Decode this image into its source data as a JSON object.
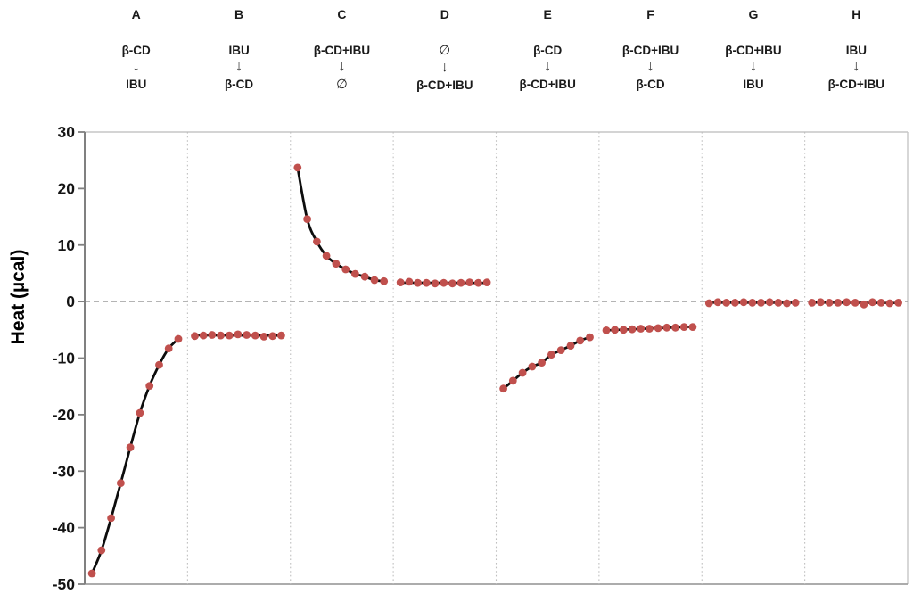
{
  "arrow_glyph": "↓",
  "colors": {
    "marker": "#C0504D",
    "fit_line": "#0d0d0d",
    "separator_grid": "#bfbfbf",
    "zero_line": "#9c9c9c",
    "axis_spine": "#808080",
    "plot_border": "#c6c6c6",
    "bottom_border": "#a0a0a0",
    "text": "#1a1a1a"
  },
  "chart_data": {
    "type": "scatter",
    "title": "",
    "xlabel": "",
    "ylabel": "Heat (µcal)",
    "ylim": [
      -50,
      30
    ],
    "yticks": [
      30,
      20,
      10,
      0,
      -10,
      -20,
      -30,
      -40,
      -50
    ],
    "zero_reference_line": 0,
    "grid": "vertical-panel-separators-only",
    "legend": "none",
    "panels": [
      {
        "label": "A",
        "top": "β-CD",
        "bottom": "IBU",
        "fit": "curve",
        "values": [
          -48.1,
          -44.0,
          -38.3,
          -32.1,
          -25.8,
          -19.7,
          -14.9,
          -11.2,
          -8.3,
          -6.6
        ]
      },
      {
        "label": "B",
        "top": "IBU",
        "bottom": "β-CD",
        "fit": "linear",
        "values": [
          -6.1,
          -6.0,
          -5.9,
          -6.0,
          -6.0,
          -5.8,
          -5.9,
          -6.0,
          -6.2,
          -6.1,
          -6.0
        ]
      },
      {
        "label": "C",
        "top": "β-CD+IBU",
        "bottom": "∅",
        "fit": "curve",
        "values": [
          23.7,
          14.6,
          10.6,
          8.1,
          6.7,
          5.7,
          4.9,
          4.4,
          3.8,
          3.6
        ]
      },
      {
        "label": "D",
        "top": "∅",
        "bottom": "β-CD+IBU",
        "fit": "linear",
        "values": [
          3.4,
          3.5,
          3.3,
          3.3,
          3.2,
          3.3,
          3.2,
          3.3,
          3.4,
          3.3,
          3.4
        ]
      },
      {
        "label": "E",
        "top": "β-CD",
        "bottom": "β-CD+IBU",
        "fit": "curve",
        "values": [
          -15.4,
          -14.0,
          -12.6,
          -11.5,
          -10.8,
          -9.4,
          -8.6,
          -7.8,
          -6.9,
          -6.3
        ]
      },
      {
        "label": "F",
        "top": "β-CD+IBU",
        "bottom": "β-CD",
        "fit": "linear",
        "values": [
          -5.1,
          -5.0,
          -5.0,
          -4.9,
          -4.8,
          -4.8,
          -4.7,
          -4.6,
          -4.6,
          -4.5,
          -4.5
        ]
      },
      {
        "label": "G",
        "top": "β-CD+IBU",
        "bottom": "IBU",
        "fit": "linear",
        "values": [
          -0.3,
          -0.1,
          -0.2,
          -0.2,
          -0.1,
          -0.2,
          -0.2,
          -0.1,
          -0.2,
          -0.3,
          -0.2
        ]
      },
      {
        "label": "H",
        "top": "IBU",
        "bottom": "β-CD+IBU",
        "fit": "linear",
        "values": [
          -0.2,
          -0.1,
          -0.2,
          -0.2,
          -0.1,
          -0.2,
          -0.5,
          -0.1,
          -0.2,
          -0.3,
          -0.2
        ]
      }
    ]
  }
}
